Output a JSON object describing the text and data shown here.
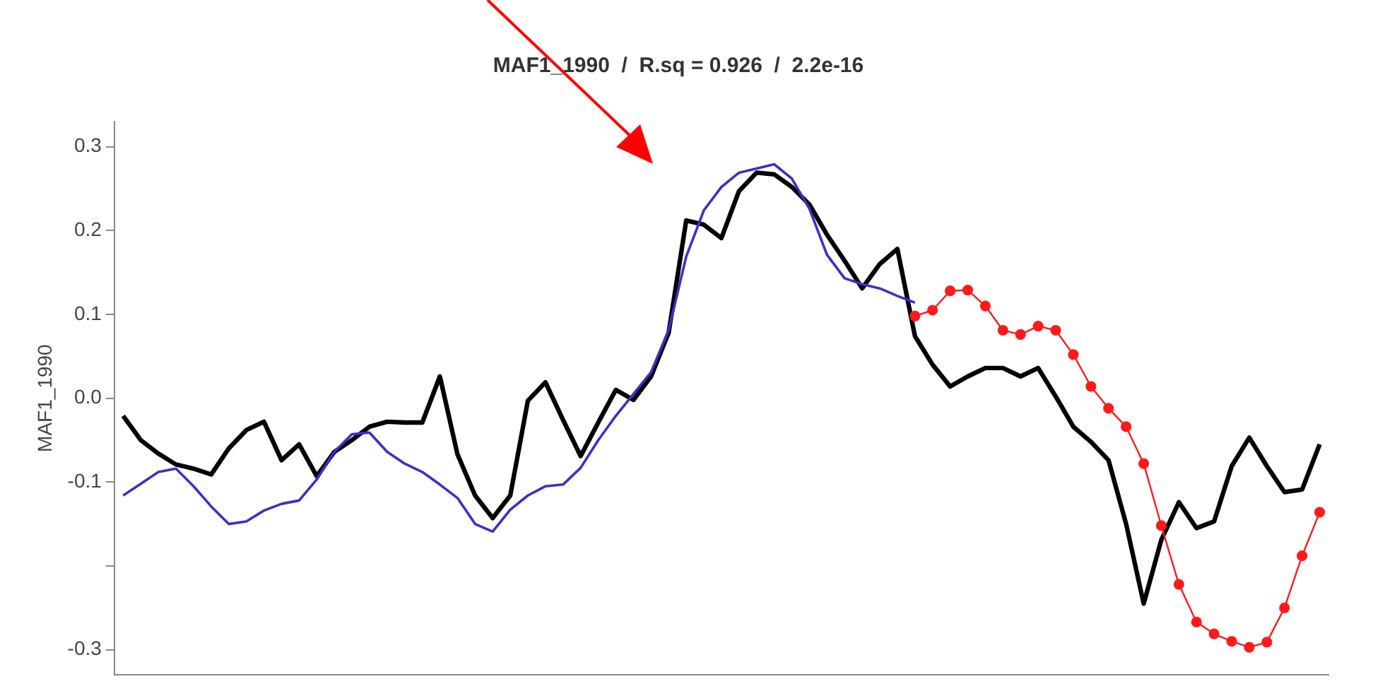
{
  "chart_data": {
    "type": "line",
    "title": "MAF1_1990  /  R.sq = 0.926  /  2.2e-16",
    "ylabel": "MAF1_1990",
    "categories": [
      null,
      null,
      null,
      null,
      null,
      null,
      null,
      null,
      null,
      null,
      null,
      null,
      null,
      null,
      null,
      null,
      null,
      null,
      null,
      null,
      null,
      null,
      null,
      null,
      null,
      null,
      null,
      null,
      null,
      null,
      null,
      null,
      null,
      null,
      null,
      null,
      null,
      null,
      null,
      null,
      null,
      null,
      null,
      null,
      null,
      null,
      null,
      null,
      null,
      null,
      null,
      null,
      null,
      null,
      null,
      null,
      null,
      null,
      null,
      null,
      null,
      null,
      null,
      null,
      null,
      null,
      null,
      null,
      null
    ],
    "series": [
      {
        "color": "#3b30c8",
        "marker": "none",
        "values": [
          -0.116,
          -0.102,
          -0.088,
          -0.084,
          -0.105,
          -0.129,
          -0.15,
          -0.147,
          -0.134,
          -0.126,
          -0.122,
          -0.097,
          -0.064,
          -0.043,
          -0.041,
          -0.064,
          -0.078,
          -0.088,
          -0.103,
          -0.119,
          -0.15,
          -0.159,
          -0.133,
          -0.116,
          -0.105,
          -0.103,
          -0.083,
          -0.05,
          -0.021,
          0.005,
          0.031,
          0.081,
          0.169,
          0.224,
          0.252,
          0.269,
          0.274,
          0.279,
          0.262,
          0.226,
          0.171,
          0.143,
          0.136,
          0.131,
          0.122,
          0.114,
          null,
          null,
          null,
          null,
          null,
          null,
          null,
          null,
          null,
          null,
          null,
          null,
          null,
          null,
          null,
          null,
          null,
          null,
          null,
          null,
          null,
          null,
          null
        ]
      },
      {
        "color": "#ff1a1a",
        "marker": "circle",
        "values": [
          null,
          null,
          null,
          null,
          null,
          null,
          null,
          null,
          null,
          null,
          null,
          null,
          null,
          null,
          null,
          null,
          null,
          null,
          null,
          null,
          null,
          null,
          null,
          null,
          null,
          null,
          null,
          null,
          null,
          null,
          null,
          null,
          null,
          null,
          null,
          null,
          null,
          null,
          null,
          null,
          null,
          null,
          null,
          null,
          null,
          0.098,
          0.105,
          0.128,
          0.129,
          0.11,
          0.081,
          0.076,
          0.086,
          0.081,
          0.052,
          0.014,
          -0.012,
          -0.034,
          -0.078,
          -0.152,
          -0.222,
          -0.267,
          -0.281,
          -0.29,
          -0.297,
          -0.291,
          -0.25,
          -0.188,
          -0.136
        ]
      },
      {
        "color": "#000000",
        "marker": "none",
        "values": [
          -0.021,
          -0.05,
          -0.066,
          -0.079,
          -0.084,
          -0.091,
          -0.06,
          -0.038,
          -0.028,
          -0.074,
          -0.055,
          -0.093,
          -0.064,
          -0.05,
          -0.034,
          -0.028,
          -0.029,
          -0.029,
          0.026,
          -0.067,
          -0.116,
          -0.143,
          -0.116,
          -0.003,
          0.019,
          -0.026,
          -0.069,
          -0.029,
          0.01,
          -0.002,
          0.026,
          0.078,
          0.212,
          0.207,
          0.191,
          0.247,
          0.269,
          0.267,
          0.252,
          0.231,
          0.195,
          0.164,
          0.131,
          0.16,
          0.178,
          0.074,
          0.04,
          0.014,
          0.026,
          0.036,
          0.036,
          0.026,
          0.036,
          0.002,
          -0.034,
          -0.052,
          -0.074,
          -0.15,
          -0.245,
          -0.169,
          -0.124,
          -0.155,
          -0.147,
          -0.081,
          -0.047,
          -0.081,
          -0.112,
          -0.109,
          -0.055
        ]
      }
    ],
    "ylim": [
      -0.33,
      0.33
    ],
    "yticks": [
      -0.3,
      {
        "value": -0.2,
        "label": null
      },
      -0.1,
      {
        "value": 0,
        "label": "0.0"
      },
      0.1,
      0.2,
      0.3
    ],
    "tick_labels": "y"
  }
}
